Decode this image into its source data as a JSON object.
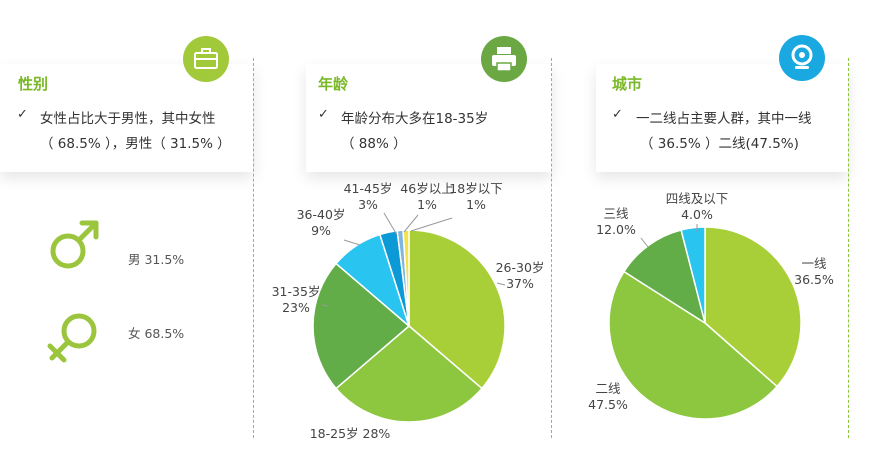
{
  "gender": {
    "title": "性别",
    "line1": "女性占比大于男性，其中女性",
    "line2": "（ 68.5% ），男性（ 31.5% ）",
    "male_label": "男 31.5%",
    "female_label": "女 68.5%"
  },
  "age": {
    "title": "年龄",
    "line1": "年龄分布大多在18-35岁",
    "line2": "（ 88% ）"
  },
  "city": {
    "title": "城市",
    "line1": "一二线占主要人群，其中一线",
    "line2": "（ 36.5% ）二线(47.5%)"
  },
  "check_mark": "✓",
  "colors": {
    "accent": "#7ab829",
    "badge_briefcase": "#a2c93a",
    "badge_printer": "#6ba844",
    "badge_webcam": "#1aa8e0"
  },
  "chart_data": [
    {
      "type": "pie",
      "title": "",
      "slices": [
        {
          "label": "26-30岁",
          "value_label": "37%",
          "value": 37,
          "color": "#a8cf38"
        },
        {
          "label": "18-25岁",
          "value_label": "28%",
          "value": 28,
          "color": "#8dc63f"
        },
        {
          "label": "31-35岁",
          "value_label": "23%",
          "value": 23,
          "color": "#62ad48"
        },
        {
          "label": "36-40岁",
          "value_label": "9%",
          "value": 9,
          "color": "#29c4f0"
        },
        {
          "label": "41-45岁",
          "value_label": "3%",
          "value": 3,
          "color": "#0c9ad6"
        },
        {
          "label": "46岁以上",
          "value_label": "1%",
          "value": 1,
          "color": "#7fb6e0"
        },
        {
          "label": "18岁以下",
          "value_label": "1%",
          "value": 1,
          "color": "#f3e24a"
        }
      ]
    },
    {
      "type": "pie",
      "title": "",
      "slices": [
        {
          "label": "一线",
          "value_label": "36.5%",
          "value": 36.5,
          "color": "#a8cf38"
        },
        {
          "label": "二线",
          "value_label": "47.5%",
          "value": 47.5,
          "color": "#8dc63f"
        },
        {
          "label": "三线",
          "value_label": "12.0%",
          "value": 12.0,
          "color": "#62ad48"
        },
        {
          "label": "四线及以下",
          "value_label": "4.0%",
          "value": 4.0,
          "color": "#29c4f0"
        }
      ]
    }
  ]
}
